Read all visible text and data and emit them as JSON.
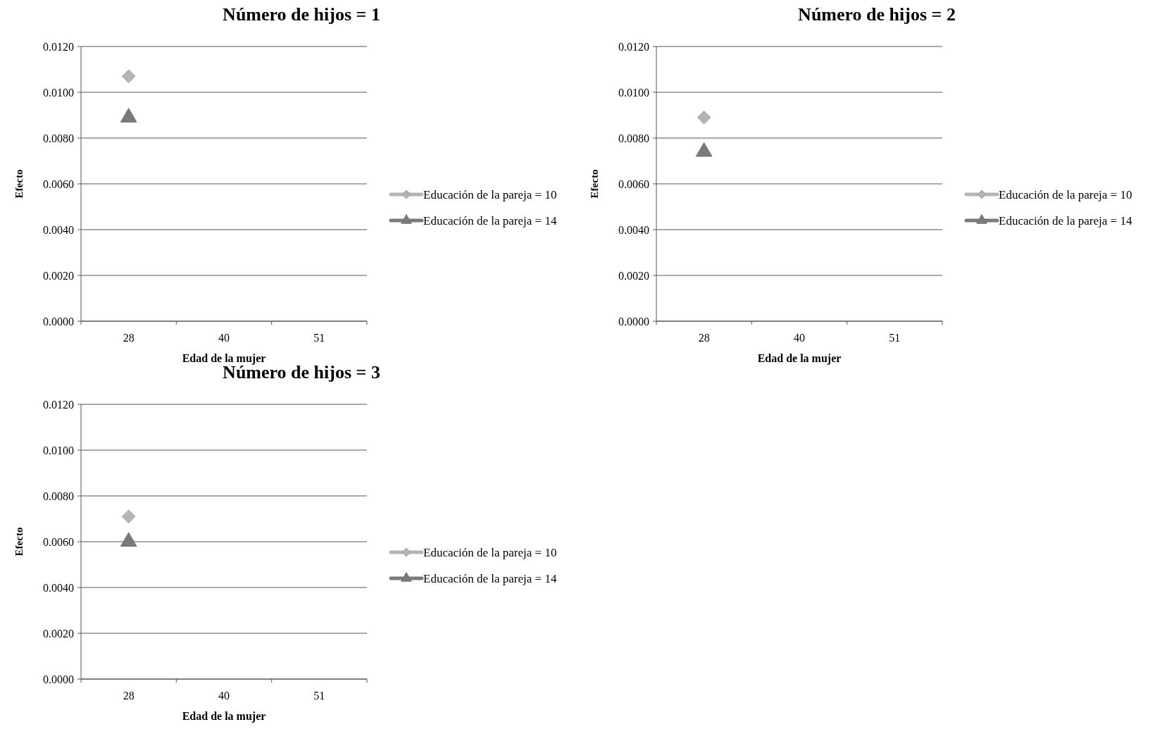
{
  "chart_data": [
    {
      "type": "line",
      "title": "Número de hijos = 1",
      "xlabel": "Edad de la mujer",
      "ylabel": "Efecto",
      "categories": [
        "28",
        "40",
        "51"
      ],
      "ylim": [
        0,
        0.012
      ],
      "yticks": [
        {
          "value": 0,
          "label": "0.0000"
        },
        {
          "value": 0.002,
          "label": "0.0020"
        },
        {
          "value": 0.004,
          "label": "0.0040"
        },
        {
          "value": 0.006,
          "label": "0.0060"
        },
        {
          "value": 0.008,
          "label": "0.0080"
        },
        {
          "value": 0.01,
          "label": "0.0100"
        },
        {
          "value": 0.012,
          "label": "0.0120"
        }
      ],
      "grid": "y",
      "legend": "right",
      "series": [
        {
          "name": "Educación de la pareja = 10",
          "color": "#b4b4b4",
          "marker": "diamond",
          "values": [
            0.0107,
            null,
            null
          ]
        },
        {
          "name": "Educación de la pareja = 14",
          "color": "#7a7a7a",
          "marker": "triangle",
          "values": [
            0.0089,
            null,
            null
          ]
        }
      ]
    },
    {
      "type": "line",
      "title": "Número de hijos = 2",
      "xlabel": "Edad de la mujer",
      "ylabel": "Efecto",
      "categories": [
        "28",
        "40",
        "51"
      ],
      "ylim": [
        0,
        0.012
      ],
      "yticks": [
        {
          "value": 0,
          "label": "0.0000"
        },
        {
          "value": 0.002,
          "label": "0.0020"
        },
        {
          "value": 0.004,
          "label": "0.0040"
        },
        {
          "value": 0.006,
          "label": "0.0060"
        },
        {
          "value": 0.008,
          "label": "0.0080"
        },
        {
          "value": 0.01,
          "label": "0.0100"
        },
        {
          "value": 0.012,
          "label": "0.0120"
        }
      ],
      "grid": "y",
      "legend": "right",
      "series": [
        {
          "name": "Educación de la pareja = 10",
          "color": "#b4b4b4",
          "marker": "diamond",
          "values": [
            0.0089,
            null,
            null
          ]
        },
        {
          "name": "Educación de la pareja = 14",
          "color": "#7a7a7a",
          "marker": "triangle",
          "values": [
            0.0074,
            null,
            null
          ]
        }
      ]
    },
    {
      "type": "line",
      "title": "Número de hijos = 3",
      "xlabel": "Edad de la mujer",
      "ylabel": "Efecto",
      "categories": [
        "28",
        "40",
        "51"
      ],
      "ylim": [
        0,
        0.012
      ],
      "yticks": [
        {
          "value": 0,
          "label": "0.0000"
        },
        {
          "value": 0.002,
          "label": "0.0020"
        },
        {
          "value": 0.004,
          "label": "0.0040"
        },
        {
          "value": 0.006,
          "label": "0.0060"
        },
        {
          "value": 0.008,
          "label": "0.0080"
        },
        {
          "value": 0.01,
          "label": "0.0100"
        },
        {
          "value": 0.012,
          "label": "0.0120"
        }
      ],
      "grid": "y",
      "legend": "right",
      "series": [
        {
          "name": "Educación de la pareja = 10",
          "color": "#b4b4b4",
          "marker": "diamond",
          "values": [
            0.0071,
            null,
            null
          ]
        },
        {
          "name": "Educación de la pareja = 14",
          "color": "#7a7a7a",
          "marker": "triangle",
          "values": [
            0.006,
            null,
            null
          ]
        }
      ]
    }
  ]
}
